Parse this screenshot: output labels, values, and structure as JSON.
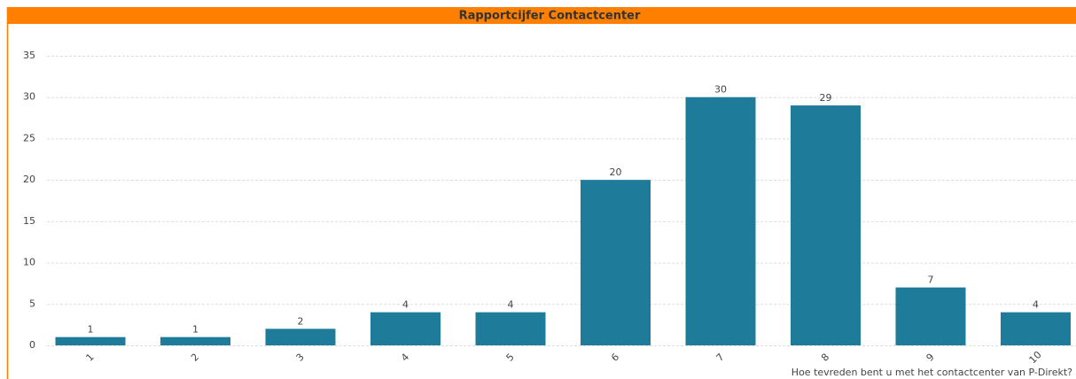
{
  "chart_data": {
    "type": "bar",
    "title": "Rapportcijfer Contactcenter",
    "x_label": "Hoe tevreden bent u met het contactcenter van P-Direkt?",
    "categories": [
      "1",
      "2",
      "3",
      "4",
      "5",
      "6",
      "7",
      "8",
      "9",
      "10"
    ],
    "values": [
      1,
      1,
      2,
      4,
      4,
      20,
      30,
      29,
      7,
      4
    ],
    "color": "#1f7b9a",
    "ylim": [
      0,
      35
    ],
    "yticks": [
      0,
      5,
      10,
      15,
      20,
      25,
      30,
      35
    ],
    "grid": true
  }
}
